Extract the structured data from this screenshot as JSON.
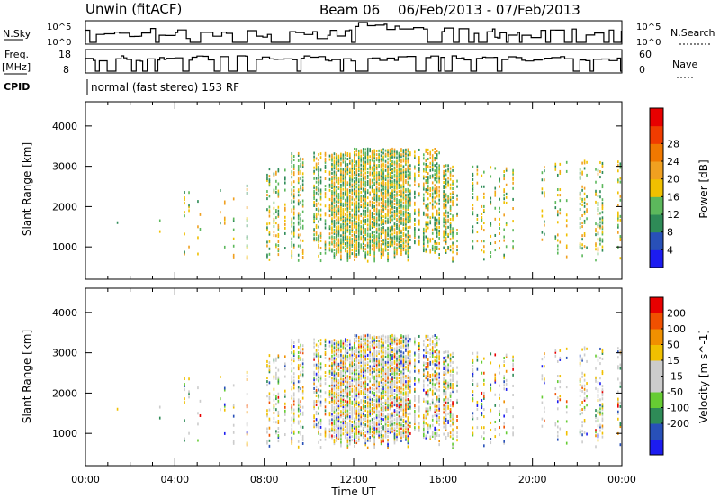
{
  "header": {
    "station": "Unwin (fitACF)",
    "beam": "Beam 06",
    "date_range": "06/Feb/2013 - 07/Feb/2013"
  },
  "status_panels": {
    "nsky": {
      "label": "N.Sky",
      "ticks": [
        "10^5",
        "10^0"
      ],
      "right_label": "N.Search",
      "right_ticks": [
        "10^5",
        "10^0"
      ]
    },
    "freq": {
      "label_line1": "Freq.",
      "label_line2": "[MHz]",
      "ticks": [
        "18",
        "8"
      ],
      "right_label": "Nave",
      "right_ticks": [
        "60",
        "0"
      ]
    },
    "cpid": {
      "label": "CPID",
      "mode_text": "normal (fast stereo) 153 RF"
    }
  },
  "chart_data": [
    {
      "type": "heatmap",
      "name": "power",
      "ylabel": "Slant Range [km]",
      "yticks": [
        1000,
        2000,
        3000,
        4000
      ],
      "ylim": [
        200,
        4600
      ],
      "xlim": [
        0,
        24
      ],
      "colorbar": {
        "label": "Power [dB]",
        "ticks": [
          "4",
          "8",
          "12",
          "16",
          "20",
          "24",
          "28"
        ],
        "colors": [
          "#1c1cf0",
          "#2850b8",
          "#2e8b57",
          "#5cb85c",
          "#f0c000",
          "#f0a020",
          "#f07800",
          "#f03c00",
          "#e80000"
        ]
      }
    },
    {
      "type": "heatmap",
      "name": "velocity",
      "ylabel": "Slant Range [km]",
      "yticks": [
        1000,
        2000,
        3000,
        4000
      ],
      "ylim": [
        200,
        4600
      ],
      "xlim": [
        0,
        24
      ],
      "colorbar": {
        "label": "Velocity [m s^-1]",
        "ticks": [
          "200",
          "100",
          "50",
          "15",
          "-15",
          "-50",
          "-100",
          "-200"
        ],
        "colors": [
          "#1c1cf0",
          "#2850b8",
          "#2e8b57",
          "#66cc33",
          "#cccccc",
          "#cccccc",
          "#f0c000",
          "#f09000",
          "#f05000",
          "#e80000"
        ]
      }
    }
  ],
  "x_axis": {
    "label": "Time UT",
    "ticks": [
      "00:00",
      "04:00",
      "08:00",
      "12:00",
      "16:00",
      "20:00",
      "00:00"
    ],
    "tick_hours": [
      0,
      4,
      8,
      12,
      16,
      20,
      24
    ]
  }
}
